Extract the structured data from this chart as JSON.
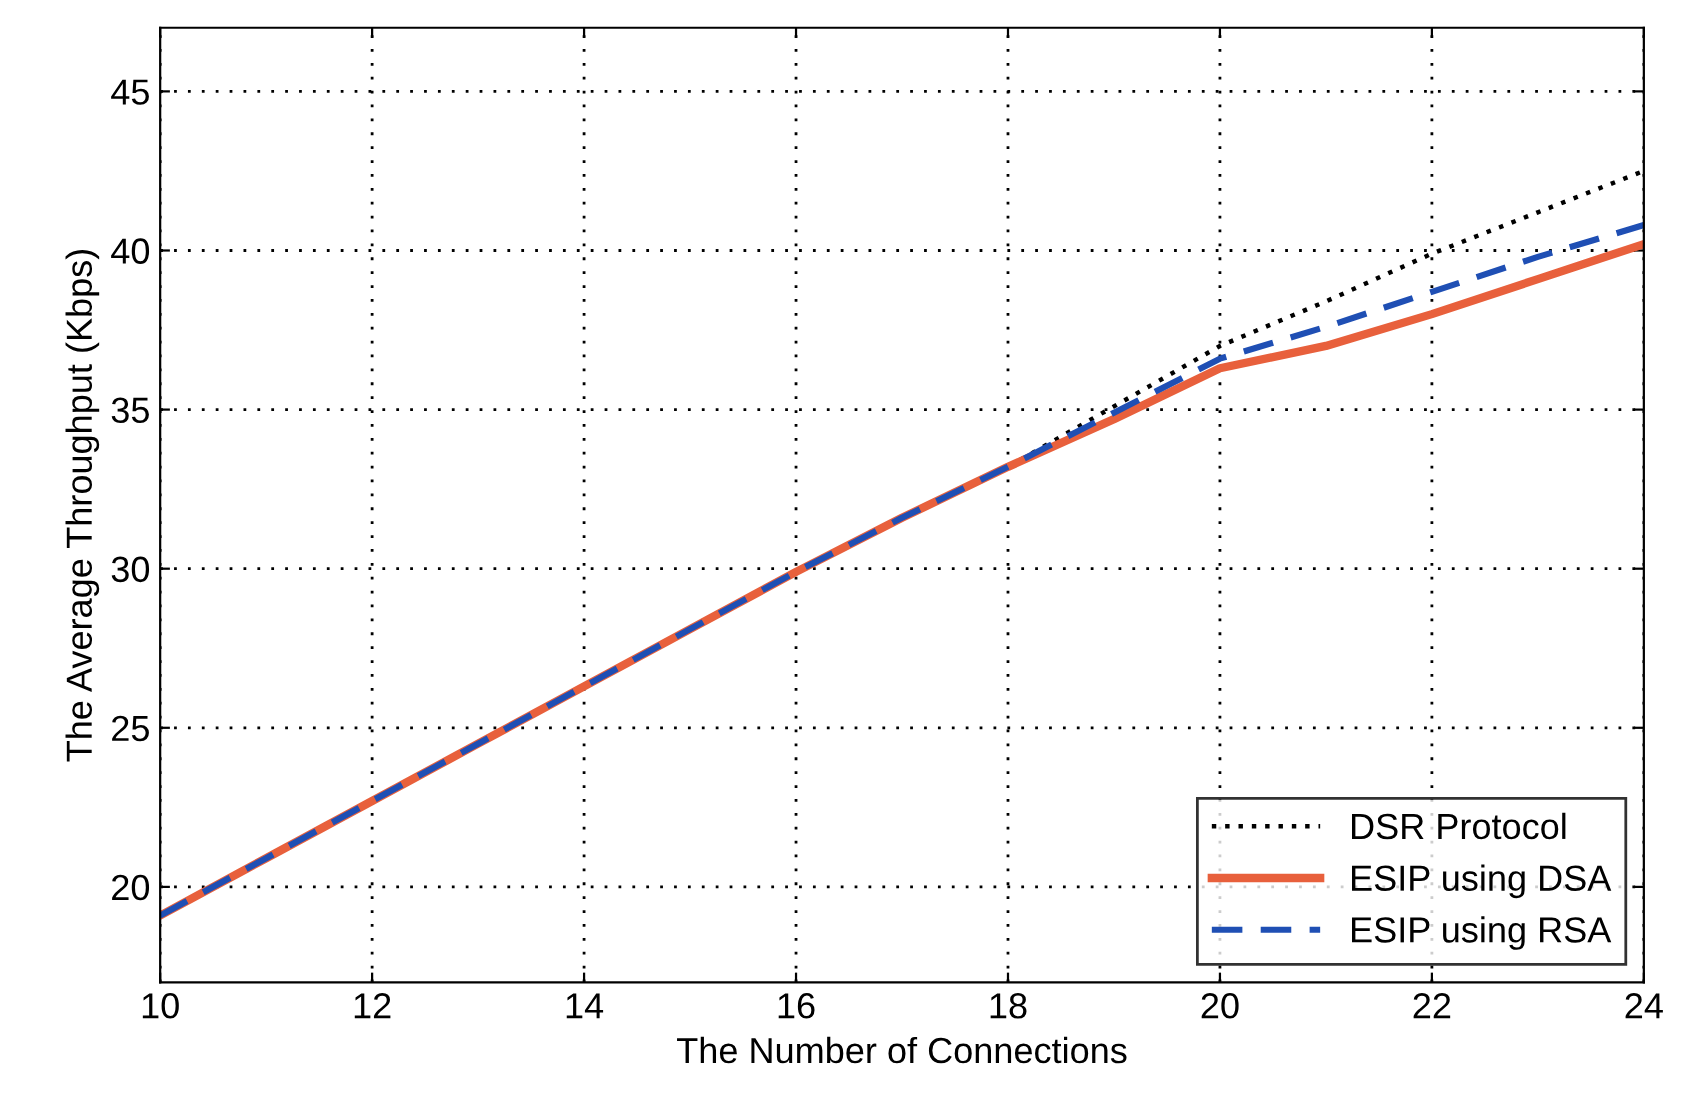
{
  "chart_data": {
    "type": "line",
    "xlabel": "The Number of Connections",
    "ylabel": "The Average Throughput (Kbps)",
    "x": [
      10,
      11,
      12,
      13,
      14,
      15,
      16,
      17,
      18,
      19,
      20,
      21,
      22,
      23,
      24
    ],
    "series": [
      {
        "name": "DSR Protocol",
        "color": "#000000",
        "line_style": "dotted",
        "values": [
          19.1,
          20.9,
          22.7,
          24.5,
          26.3,
          28.1,
          29.9,
          31.6,
          33.2,
          35.1,
          37.0,
          38.4,
          39.9,
          41.2,
          42.5
        ]
      },
      {
        "name": "ESIP using DSA",
        "color": "#e8603c",
        "line_style": "solid",
        "values": [
          19.1,
          20.9,
          22.7,
          24.5,
          26.3,
          28.1,
          29.9,
          31.6,
          33.2,
          34.7,
          36.3,
          37.0,
          38.0,
          39.1,
          40.2
        ]
      },
      {
        "name": "ESIP using RSA",
        "color": "#1f4fb4",
        "line_style": "dashed",
        "values": [
          19.1,
          20.9,
          22.7,
          24.5,
          26.3,
          28.1,
          29.9,
          31.6,
          33.2,
          34.9,
          36.6,
          37.6,
          38.7,
          39.8,
          40.8
        ]
      }
    ],
    "xlim": [
      10,
      24
    ],
    "xticks": [
      10,
      12,
      14,
      16,
      18,
      20,
      22,
      24
    ],
    "ylim": [
      17,
      47
    ],
    "yticks": [
      20,
      25,
      30,
      35,
      40,
      45
    ],
    "grid": true,
    "legend": "bottom right"
  }
}
